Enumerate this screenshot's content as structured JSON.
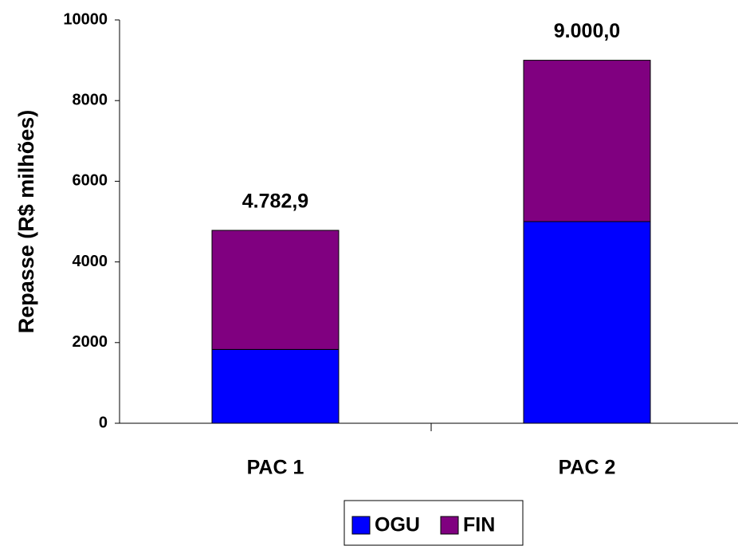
{
  "chart_data": {
    "type": "stacked_bar",
    "y_label": "Repasse (R$ milhões)",
    "categories": [
      "PAC 1",
      "PAC 2"
    ],
    "series": [
      {
        "name": "OGU",
        "color": "#0000ff",
        "values": [
          1830,
          5000
        ]
      },
      {
        "name": "FIN",
        "color": "#800080",
        "values": [
          2952.9,
          4000
        ]
      }
    ],
    "totals": [
      4782.9,
      9000
    ],
    "total_labels": [
      "4.782,9",
      "9.000,0"
    ],
    "ylim": [
      0,
      10000
    ],
    "yticks": [
      0,
      2000,
      4000,
      6000,
      8000,
      10000
    ],
    "legend": "bottom"
  }
}
